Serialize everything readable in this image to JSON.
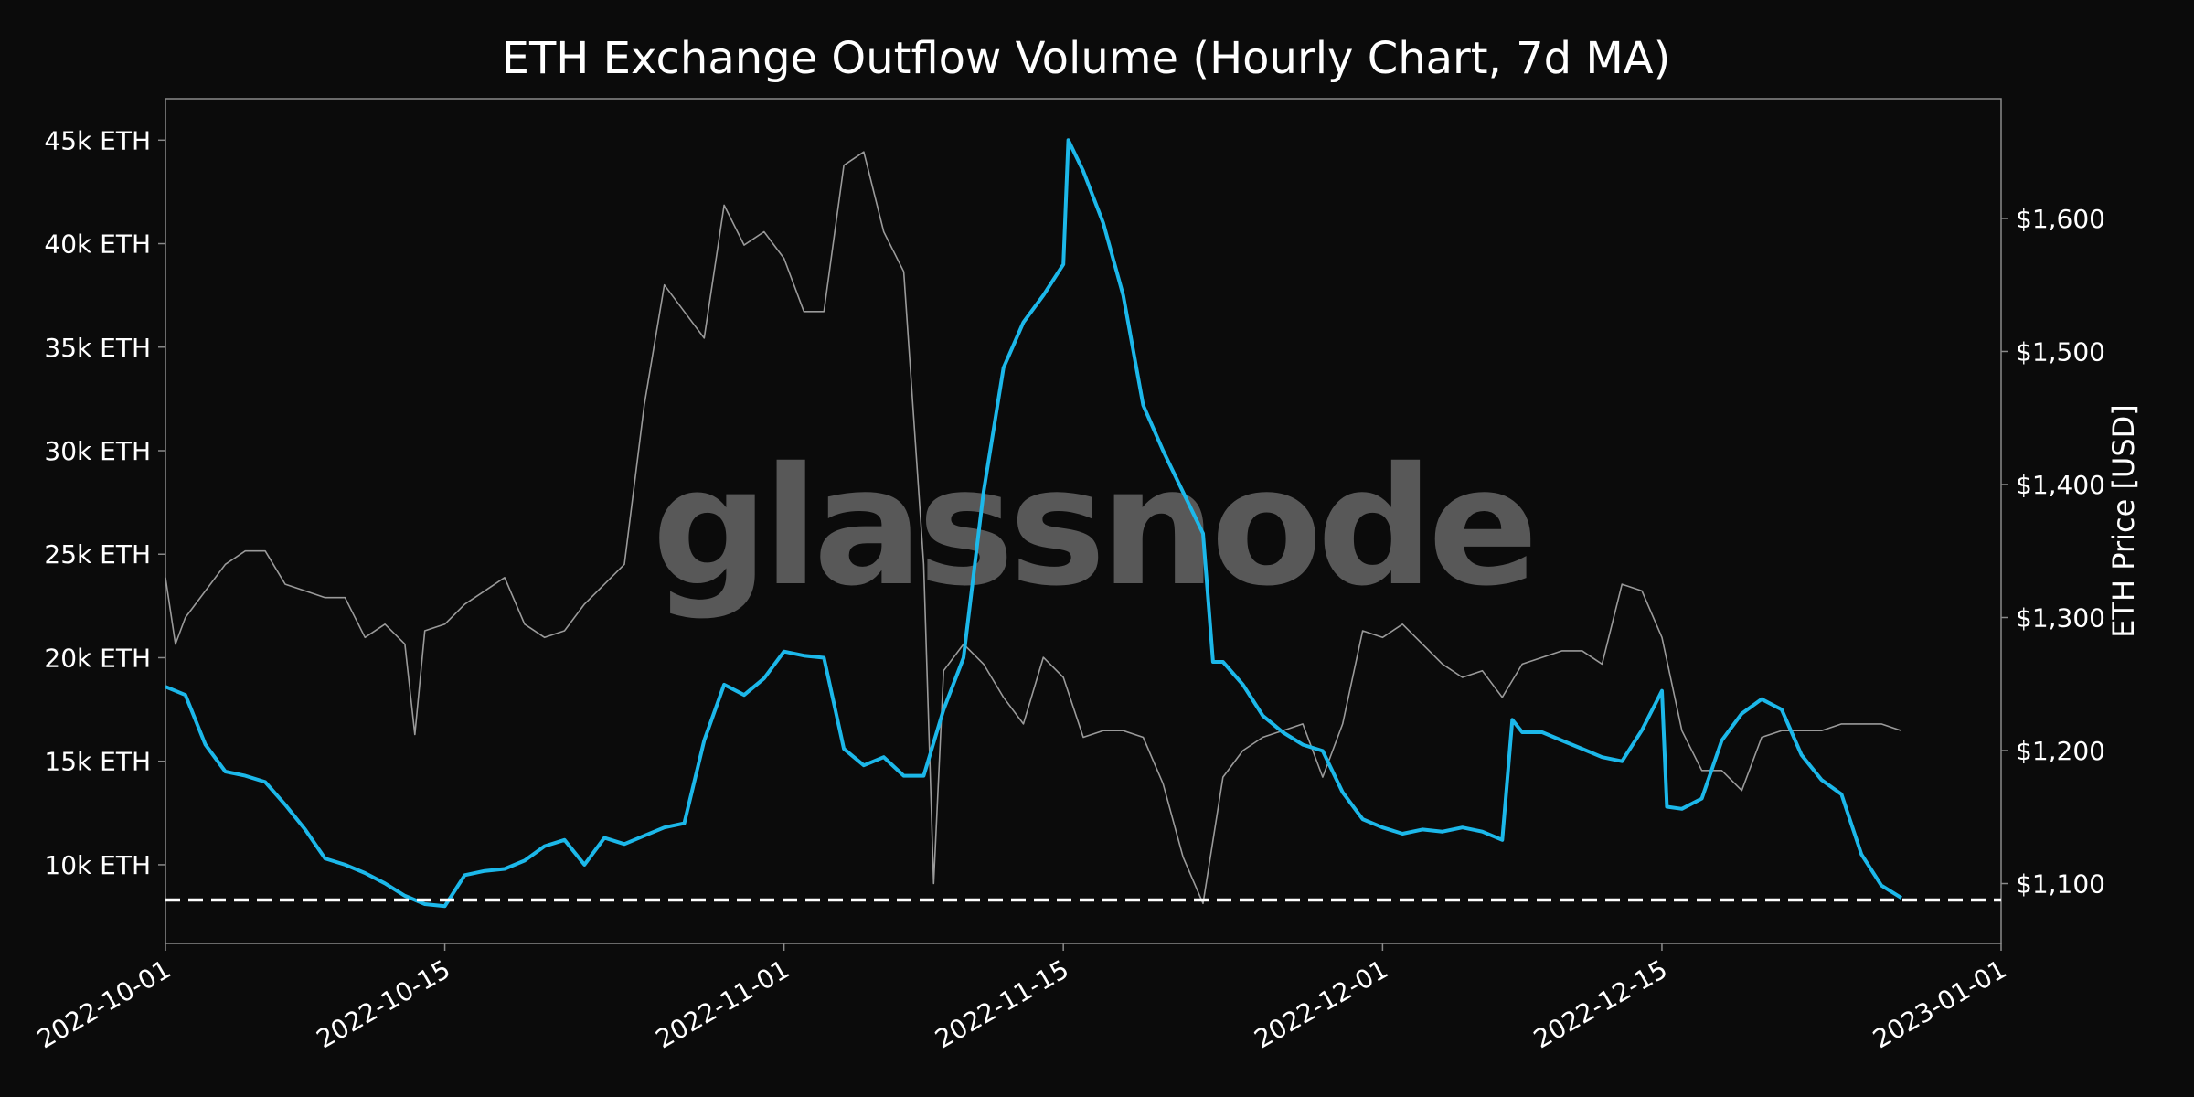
{
  "chart_data": {
    "type": "line",
    "title": "ETH Exchange Outflow Volume (Hourly Chart, 7d MA)",
    "watermark": "glassnode",
    "xlabel": "",
    "ylabel_left": "",
    "ylabel_right": "ETH Price [USD]",
    "x_ticks": [
      "2022-10-01",
      "2022-10-15",
      "2022-11-01",
      "2022-11-15",
      "2022-12-01",
      "2022-12-15",
      "2023-01-01"
    ],
    "y_left_ticks": [
      "10k ETH",
      "15k ETH",
      "20k ETH",
      "25k ETH",
      "30k ETH",
      "35k ETH",
      "40k ETH",
      "45k ETH"
    ],
    "y_right_ticks": [
      "$1,100",
      "$1,200",
      "$1,300",
      "$1,400",
      "$1,500",
      "$1,600"
    ],
    "x_range": [
      "2022-10-01",
      "2023-01-01"
    ],
    "ylim_left": [
      6200,
      47000
    ],
    "ylim_right": [
      1055,
      1690
    ],
    "grid": false,
    "reference_line": {
      "axis": "left",
      "value": 8300,
      "style": "dashed",
      "color": "#ffffff"
    },
    "colors": {
      "background": "#0b0b0b",
      "outflow": "#1cb8ea",
      "price": "#9a9a9a",
      "frame": "#8a8a8a"
    },
    "series": [
      {
        "axis": "left",
        "color": "#1cb8ea",
        "points": [
          [
            "2022-10-01",
            18600
          ],
          [
            "2022-10-02",
            18200
          ],
          [
            "2022-10-03",
            15800
          ],
          [
            "2022-10-04",
            14500
          ],
          [
            "2022-10-05",
            14300
          ],
          [
            "2022-10-06",
            14000
          ],
          [
            "2022-10-07",
            12900
          ],
          [
            "2022-10-08",
            11700
          ],
          [
            "2022-10-09",
            10300
          ],
          [
            "2022-10-10",
            10000
          ],
          [
            "2022-10-11",
            9600
          ],
          [
            "2022-10-12",
            9100
          ],
          [
            "2022-10-13",
            8500
          ],
          [
            "2022-10-14",
            8100
          ],
          [
            "2022-10-15",
            8000
          ],
          [
            "2022-10-16",
            9500
          ],
          [
            "2022-10-17",
            9700
          ],
          [
            "2022-10-18",
            9800
          ],
          [
            "2022-10-19",
            10200
          ],
          [
            "2022-10-20",
            10900
          ],
          [
            "2022-10-21",
            11200
          ],
          [
            "2022-10-22",
            10000
          ],
          [
            "2022-10-23",
            11300
          ],
          [
            "2022-10-24",
            11000
          ],
          [
            "2022-10-25",
            11400
          ],
          [
            "2022-10-26",
            11800
          ],
          [
            "2022-10-27",
            12000
          ],
          [
            "2022-10-28",
            16000
          ],
          [
            "2022-10-29",
            18700
          ],
          [
            "2022-10-30",
            18200
          ],
          [
            "2022-10-31",
            19000
          ],
          [
            "2022-11-01",
            20300
          ],
          [
            "2022-11-02",
            20100
          ],
          [
            "2022-11-03",
            20000
          ],
          [
            "2022-11-04",
            15600
          ],
          [
            "2022-11-05",
            14800
          ],
          [
            "2022-11-06",
            15200
          ],
          [
            "2022-11-07",
            14300
          ],
          [
            "2022-11-08",
            14300
          ],
          [
            "2022-11-09",
            17500
          ],
          [
            "2022-11-10",
            20000
          ],
          [
            "2022-11-11",
            28000
          ],
          [
            "2022-11-12",
            34000
          ],
          [
            "2022-11-13",
            36200
          ],
          [
            "2022-11-14",
            37500
          ],
          [
            "2022-11-15",
            39000
          ],
          [
            "2022-11-15T06",
            45000
          ],
          [
            "2022-11-16",
            43500
          ],
          [
            "2022-11-17",
            41000
          ],
          [
            "2022-11-18",
            37500
          ],
          [
            "2022-11-19",
            32200
          ],
          [
            "2022-11-20",
            30000
          ],
          [
            "2022-11-21",
            28000
          ],
          [
            "2022-11-22",
            26000
          ],
          [
            "2022-11-22T12",
            19800
          ],
          [
            "2022-11-23",
            19800
          ],
          [
            "2022-11-24",
            18700
          ],
          [
            "2022-11-25",
            17200
          ],
          [
            "2022-11-26",
            16400
          ],
          [
            "2022-11-27",
            15800
          ],
          [
            "2022-11-28",
            15500
          ],
          [
            "2022-11-29",
            13500
          ],
          [
            "2022-11-30",
            12200
          ],
          [
            "2022-12-01",
            11800
          ],
          [
            "2022-12-02",
            11500
          ],
          [
            "2022-12-03",
            11700
          ],
          [
            "2022-12-04",
            11600
          ],
          [
            "2022-12-05",
            11800
          ],
          [
            "2022-12-06",
            11600
          ],
          [
            "2022-12-07",
            11200
          ],
          [
            "2022-12-07T12",
            17000
          ],
          [
            "2022-12-08",
            16400
          ],
          [
            "2022-12-09",
            16400
          ],
          [
            "2022-12-10",
            16000
          ],
          [
            "2022-12-11",
            15600
          ],
          [
            "2022-12-12",
            15200
          ],
          [
            "2022-12-13",
            15000
          ],
          [
            "2022-12-14",
            16500
          ],
          [
            "2022-12-15",
            18400
          ],
          [
            "2022-12-15T06",
            12800
          ],
          [
            "2022-12-16",
            12700
          ],
          [
            "2022-12-17",
            13200
          ],
          [
            "2022-12-18",
            16000
          ],
          [
            "2022-12-19",
            17300
          ],
          [
            "2022-12-20",
            18000
          ],
          [
            "2022-12-21",
            17500
          ],
          [
            "2022-12-22",
            15300
          ],
          [
            "2022-12-23",
            14100
          ],
          [
            "2022-12-24",
            13400
          ],
          [
            "2022-12-25",
            10500
          ],
          [
            "2022-12-26",
            9000
          ],
          [
            "2022-12-27",
            8400
          ]
        ]
      },
      {
        "axis": "right",
        "color": "#9a9a9a",
        "points": [
          [
            "2022-10-01",
            1330
          ],
          [
            "2022-10-01T12",
            1280
          ],
          [
            "2022-10-02",
            1300
          ],
          [
            "2022-10-03",
            1320
          ],
          [
            "2022-10-04",
            1340
          ],
          [
            "2022-10-05",
            1350
          ],
          [
            "2022-10-06",
            1350
          ],
          [
            "2022-10-07",
            1325
          ],
          [
            "2022-10-08",
            1320
          ],
          [
            "2022-10-09",
            1315
          ],
          [
            "2022-10-10",
            1315
          ],
          [
            "2022-10-11",
            1285
          ],
          [
            "2022-10-12",
            1295
          ],
          [
            "2022-10-13",
            1280
          ],
          [
            "2022-10-13T12",
            1212
          ],
          [
            "2022-10-14",
            1290
          ],
          [
            "2022-10-15",
            1295
          ],
          [
            "2022-10-16",
            1310
          ],
          [
            "2022-10-17",
            1320
          ],
          [
            "2022-10-18",
            1330
          ],
          [
            "2022-10-19",
            1295
          ],
          [
            "2022-10-20",
            1285
          ],
          [
            "2022-10-21",
            1290
          ],
          [
            "2022-10-22",
            1310
          ],
          [
            "2022-10-23",
            1325
          ],
          [
            "2022-10-24",
            1340
          ],
          [
            "2022-10-25",
            1460
          ],
          [
            "2022-10-26",
            1550
          ],
          [
            "2022-10-27",
            1530
          ],
          [
            "2022-10-28",
            1510
          ],
          [
            "2022-10-29",
            1610
          ],
          [
            "2022-10-30",
            1580
          ],
          [
            "2022-10-31",
            1590
          ],
          [
            "2022-11-01",
            1570
          ],
          [
            "2022-11-02",
            1530
          ],
          [
            "2022-11-03",
            1530
          ],
          [
            "2022-11-04",
            1640
          ],
          [
            "2022-11-05",
            1650
          ],
          [
            "2022-11-06",
            1590
          ],
          [
            "2022-11-07",
            1560
          ],
          [
            "2022-11-08",
            1340
          ],
          [
            "2022-11-08T12",
            1100
          ],
          [
            "2022-11-09",
            1260
          ],
          [
            "2022-11-10",
            1280
          ],
          [
            "2022-11-11",
            1265
          ],
          [
            "2022-11-12",
            1240
          ],
          [
            "2022-11-13",
            1220
          ],
          [
            "2022-11-14",
            1270
          ],
          [
            "2022-11-15",
            1255
          ],
          [
            "2022-11-16",
            1210
          ],
          [
            "2022-11-17",
            1215
          ],
          [
            "2022-11-18",
            1215
          ],
          [
            "2022-11-19",
            1210
          ],
          [
            "2022-11-20",
            1175
          ],
          [
            "2022-11-21",
            1120
          ],
          [
            "2022-11-22",
            1085
          ],
          [
            "2022-11-23",
            1180
          ],
          [
            "2022-11-24",
            1200
          ],
          [
            "2022-11-25",
            1210
          ],
          [
            "2022-11-26",
            1215
          ],
          [
            "2022-11-27",
            1220
          ],
          [
            "2022-11-28",
            1180
          ],
          [
            "2022-11-29",
            1220
          ],
          [
            "2022-11-30",
            1290
          ],
          [
            "2022-12-01",
            1285
          ],
          [
            "2022-12-02",
            1295
          ],
          [
            "2022-12-03",
            1280
          ],
          [
            "2022-12-04",
            1265
          ],
          [
            "2022-12-05",
            1255
          ],
          [
            "2022-12-06",
            1260
          ],
          [
            "2022-12-07",
            1240
          ],
          [
            "2022-12-08",
            1265
          ],
          [
            "2022-12-09",
            1270
          ],
          [
            "2022-12-10",
            1275
          ],
          [
            "2022-12-11",
            1275
          ],
          [
            "2022-12-12",
            1265
          ],
          [
            "2022-12-13",
            1325
          ],
          [
            "2022-12-14",
            1320
          ],
          [
            "2022-12-15",
            1285
          ],
          [
            "2022-12-16",
            1215
          ],
          [
            "2022-12-17",
            1185
          ],
          [
            "2022-12-18",
            1185
          ],
          [
            "2022-12-19",
            1170
          ],
          [
            "2022-12-20",
            1210
          ],
          [
            "2022-12-21",
            1215
          ],
          [
            "2022-12-22",
            1215
          ],
          [
            "2022-12-23",
            1215
          ],
          [
            "2022-12-24",
            1220
          ],
          [
            "2022-12-25",
            1220
          ],
          [
            "2022-12-26",
            1220
          ],
          [
            "2022-12-27",
            1215
          ]
        ]
      }
    ]
  }
}
